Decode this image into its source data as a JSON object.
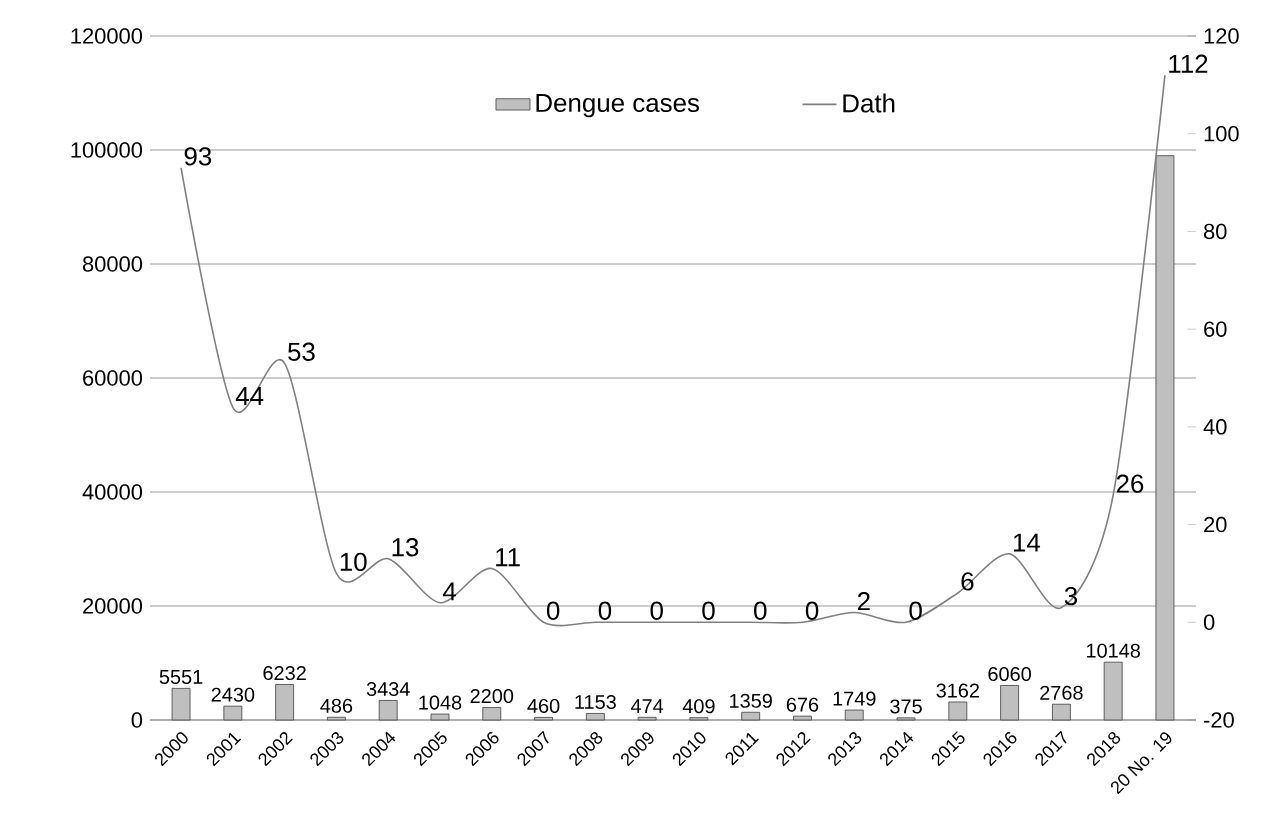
{
  "chart_data": {
    "type": "bar",
    "categories": [
      "2000",
      "2001",
      "2002",
      "2003",
      "2004",
      "2005",
      "2006",
      "2007",
      "2008",
      "2009",
      "2010",
      "2011",
      "2012",
      "2013",
      "2014",
      "2015",
      "2016",
      "2017",
      "2018",
      "20 No. 19"
    ],
    "series": [
      {
        "name": "Dengue cases",
        "color": "#bfbfbf",
        "values": [
          5551,
          2430,
          6232,
          486,
          3434,
          1048,
          2200,
          460,
          1153,
          474,
          409,
          1359,
          676,
          1749,
          375,
          3162,
          6060,
          2768,
          10148,
          99000
        ],
        "value_labels": [
          "5551",
          "2430",
          "6232",
          "486",
          "3434",
          "1048",
          "2200",
          "460",
          "1153",
          "474",
          "409",
          "1359",
          "676",
          "1749",
          "375",
          "3162",
          "6060",
          "2768",
          "10148",
          null
        ]
      },
      {
        "name": "Dath",
        "type": "line",
        "axis": "y2",
        "color": "#808080",
        "values": [
          93,
          44,
          53,
          10,
          13,
          4,
          11,
          0,
          0,
          0,
          0,
          0,
          0,
          2,
          0,
          6,
          14,
          3,
          26,
          112
        ],
        "value_labels": [
          "93",
          "44",
          "53",
          "10",
          "13",
          "4",
          "11",
          "0",
          "0",
          "0",
          "0",
          "0",
          "0",
          "2",
          "0",
          "6",
          "14",
          "3",
          "26",
          "112"
        ]
      }
    ],
    "ylim": [
      0,
      120000
    ],
    "yticks": [
      0,
      20000,
      40000,
      60000,
      80000,
      100000,
      120000
    ],
    "y2lim": [
      -20,
      120
    ],
    "y2ticks": [
      -20,
      0,
      20,
      40,
      60,
      80,
      100,
      120
    ],
    "grid": "y",
    "legend": "top",
    "marker": "none",
    "line_style": "solid"
  }
}
